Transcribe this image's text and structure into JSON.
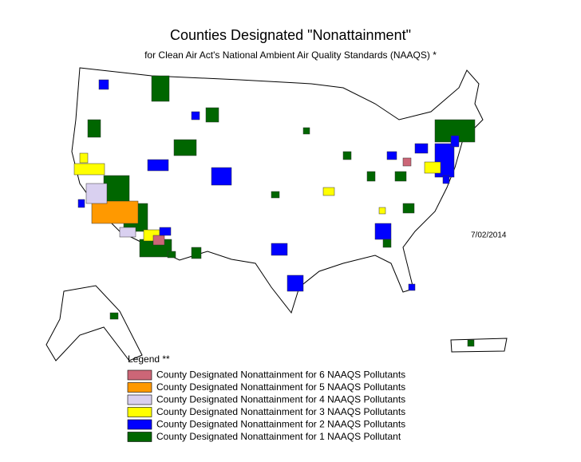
{
  "header": {
    "title": "Counties Designated \"Nonattainment\"",
    "subtitle": "for Clean Air Act's National Ambient Air Quality Standards (NAAQS) *",
    "date": "7/02/2014"
  },
  "legend": {
    "title": "Legend **",
    "items": [
      {
        "label": "County Designated Nonattainment for 6 NAAQS Pollutants",
        "color": "#cc6677"
      },
      {
        "label": "County Designated Nonattainment for 5 NAAQS Pollutants",
        "color": "#ff9900"
      },
      {
        "label": "County Designated Nonattainment for 4 NAAQS Pollutants",
        "color": "#d9d0f0"
      },
      {
        "label": "County Designated Nonattainment for 3 NAAQS Pollutants",
        "color": "#ffff00"
      },
      {
        "label": "County Designated Nonattainment for 2 NAAQS Pollutants",
        "color": "#0000ff"
      },
      {
        "label": "County Designated Nonattainment for 1 NAAQS Pollutant",
        "color": "#006600"
      }
    ]
  }
}
